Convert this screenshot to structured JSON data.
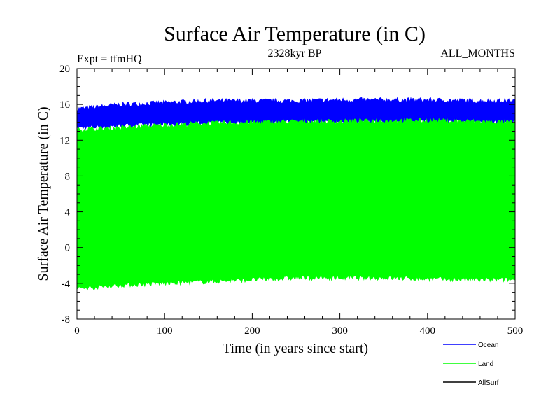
{
  "chart_data": {
    "type": "line",
    "title": "Surface Air Temperature (in C)",
    "subtitle": "2328kyr BP",
    "left_annotation": "Expt = tfmHQ",
    "right_annotation": "ALL_MONTHS",
    "xlabel": "Time (in years since start)",
    "ylabel": "Surface Air Temperature (in C)",
    "xlim": [
      0,
      500
    ],
    "ylim": [
      -8,
      20
    ],
    "xticks": [
      0,
      100,
      200,
      300,
      400,
      500
    ],
    "yticks": [
      -8,
      -4,
      0,
      4,
      8,
      12,
      16,
      20
    ],
    "legend_position": "bottom-right",
    "series": [
      {
        "name": "Ocean",
        "color": "#0000ff",
        "x": [
          0,
          50,
          100,
          150,
          200,
          250,
          300,
          350,
          400,
          450,
          500
        ],
        "min": [
          13.4,
          13.6,
          13.8,
          13.9,
          14.0,
          14.0,
          14.0,
          14.0,
          14.1,
          14.0,
          14.0
        ],
        "max": [
          15.5,
          16.0,
          16.2,
          16.4,
          16.4,
          16.4,
          16.5,
          16.5,
          16.5,
          16.4,
          16.4
        ]
      },
      {
        "name": "Land",
        "color": "#00ff00",
        "x": [
          0,
          50,
          100,
          150,
          200,
          250,
          300,
          350,
          400,
          450,
          500
        ],
        "min": [
          -4.6,
          -4.2,
          -4.0,
          -3.8,
          -3.6,
          -3.4,
          -3.4,
          -3.4,
          -3.5,
          -3.6,
          -3.6
        ],
        "max": [
          13.2,
          13.4,
          13.7,
          13.9,
          14.0,
          14.1,
          14.1,
          14.2,
          14.2,
          14.1,
          14.0
        ]
      },
      {
        "name": "AllSurf",
        "color": "#000000",
        "x": [],
        "min": [],
        "max": []
      }
    ]
  }
}
